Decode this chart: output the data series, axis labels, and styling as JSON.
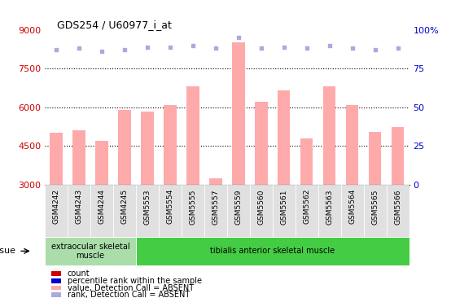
{
  "title": "GDS254 / U60977_i_at",
  "categories": [
    "GSM4242",
    "GSM4243",
    "GSM4244",
    "GSM4245",
    "GSM5553",
    "GSM5554",
    "GSM5555",
    "GSM5557",
    "GSM5559",
    "GSM5560",
    "GSM5561",
    "GSM5562",
    "GSM5563",
    "GSM5564",
    "GSM5565",
    "GSM5566"
  ],
  "bar_values": [
    5000,
    5100,
    4700,
    5900,
    5850,
    6100,
    6800,
    3250,
    8500,
    6200,
    6650,
    4800,
    6800,
    6100,
    5050,
    5250
  ],
  "scatter_pct": [
    87,
    88,
    86,
    87,
    89,
    89,
    90,
    88,
    95,
    88,
    89,
    88,
    90,
    88,
    87,
    88
  ],
  "bar_color": "#ffaaaa",
  "scatter_color": "#aaaadd",
  "ylim_left": [
    3000,
    9000
  ],
  "ylim_right": [
    0,
    100
  ],
  "yticks_left": [
    3000,
    4500,
    6000,
    7500,
    9000
  ],
  "yticks_right": [
    0,
    25,
    50,
    75,
    100
  ],
  "background_color": "#ffffff",
  "tissue_groups": [
    {
      "label": "extraocular skeletal\nmuscle",
      "start": 0,
      "end": 4,
      "color": "#aaddaa"
    },
    {
      "label": "tibialis anterior skeletal muscle",
      "start": 4,
      "end": 16,
      "color": "#44cc44"
    }
  ],
  "tissue_label": "tissue",
  "legend_items": [
    {
      "label": "count",
      "color": "#cc0000"
    },
    {
      "label": "percentile rank within the sample",
      "color": "#0000cc"
    },
    {
      "label": "value, Detection Call = ABSENT",
      "color": "#ffaaaa"
    },
    {
      "label": "rank, Detection Call = ABSENT",
      "color": "#aaaadd"
    }
  ],
  "left_axis_color": "#cc0000",
  "right_axis_color": "#0000cc",
  "bar_bottom": 3000,
  "gridlines": [
    4500,
    6000,
    7500
  ]
}
